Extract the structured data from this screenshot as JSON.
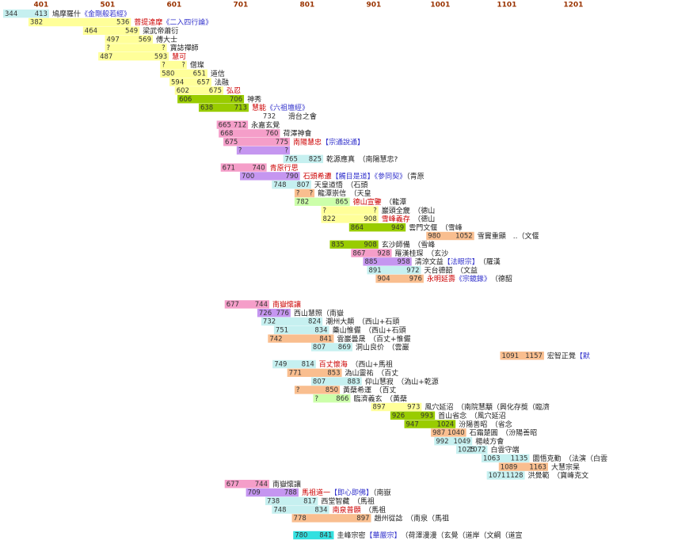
{
  "chart_data": {
    "type": "gantt",
    "xlim": [
      344,
      1250
    ],
    "xticks": [
      401,
      501,
      601,
      701,
      801,
      901,
      1001,
      1101,
      1201
    ],
    "grid": false,
    "name_color": "#cc0000",
    "work_color": "#3333cc",
    "rows": [
      {
        "start": 344,
        "end": 413,
        "color": "#c6f0f0",
        "name": "鳩摩羅什",
        "work": "《金剛般若經》"
      },
      {
        "start": 382,
        "end": 536,
        "color": "#ffff99",
        "name": "菩提達摩",
        "highlight": true,
        "work": "《二入四行論》"
      },
      {
        "start": 464,
        "end": 549,
        "color": "#ffff99",
        "name": "梁武帝蕭衍"
      },
      {
        "start": 497,
        "end": 569,
        "color": "#ffff99",
        "name": "傅大士"
      },
      {
        "start": {
          "value": 497,
          "label": "?"
        },
        "end": {
          "value": 590,
          "label": "?"
        },
        "color": "#ffff99",
        "name": "寶誌禪師"
      },
      {
        "start": 487,
        "end": 593,
        "color": "#ffff99",
        "name": "慧可",
        "highlight": true
      },
      {
        "start": {
          "value": 580,
          "label": "?"
        },
        "end": {
          "value": 620,
          "label": "?"
        },
        "color": "#ffff99",
        "name": "僧璨"
      },
      {
        "start": 580,
        "end": 651,
        "color": "#ffff99",
        "name": "道信"
      },
      {
        "start": 594,
        "end": 657,
        "color": "#ffff99",
        "name": "法融"
      },
      {
        "start": 602,
        "end": 675,
        "color": "#ffff99",
        "name": "弘忍",
        "highlight": true
      },
      {
        "start": 606,
        "end": 706,
        "color": "#99cc00",
        "name": "神秀"
      },
      {
        "start": 638,
        "end": 713,
        "color": "#99cc00",
        "name": "慧能",
        "highlight": true,
        "work": "《六祖壇經》"
      },
      {
        "start": 732,
        "name": "滑台之會"
      },
      {
        "start": 665,
        "end": 712,
        "color": "#f59ec9",
        "name": "永嘉玄覺"
      },
      {
        "start": 668,
        "end": 760,
        "color": "#f59ec9",
        "name": "荷澤神會"
      },
      {
        "start": 675,
        "end": 775,
        "color": "#f59ec9",
        "name": "南陽慧忠",
        "highlight": true,
        "work": "【宗通說通】"
      },
      {
        "start": {
          "value": 695,
          "label": "?"
        },
        "end": {
          "value": 775,
          "label": "?"
        },
        "color": "#c596f0"
      },
      {
        "start": 765,
        "end": 825,
        "color": "#c6f0f0",
        "name": "乾源應真",
        "note": "　（南陽慧忠?"
      },
      {
        "start": 671,
        "end": 740,
        "color": "#f59ec9",
        "name": "青原行思",
        "highlight": true
      },
      {
        "start": 700,
        "end": 790,
        "color": "#c596f0",
        "name": "石頭希遷",
        "highlight": true,
        "work": "【觸目是道】《參同契》",
        "note": "（青原"
      },
      {
        "start": 748,
        "end": 807,
        "color": "#c6f0f0",
        "name": "天皇道悟",
        "note": "　（石頭"
      },
      {
        "start": {
          "value": 782,
          "label": "?"
        },
        "end": {
          "value": 812,
          "label": "?"
        },
        "color": "#f9be8f",
        "name": "龍潭崇信",
        "note": "　（天皇"
      },
      {
        "start": 782,
        "end": 865,
        "color": "#ccffaa",
        "name": "德山宣鑒",
        "highlight": true,
        "note": "　（龍潭"
      },
      {
        "start": {
          "value": 822,
          "label": "?"
        },
        "end": {
          "value": 908,
          "label": "?"
        },
        "color": "#ffff99",
        "name": "巖頭全奯",
        "note": "　（德山"
      },
      {
        "start": 822,
        "end": 908,
        "color": "#ffff99",
        "name": "雪峰義存",
        "highlight": true,
        "note": "　（德山"
      },
      {
        "start": 864,
        "end": 949,
        "color": "#99cc00",
        "name": "雲門文偃",
        "note": "　（雪峰"
      },
      {
        "start": 980,
        "end": 1052,
        "color": "#f9be8f",
        "name": "雪竇重顯",
        "note": "　..（文偃"
      },
      {
        "start": 835,
        "end": 908,
        "color": "#99cc00",
        "name": "玄沙師備",
        "note": "　（雪峰"
      },
      {
        "start": 867,
        "end": 928,
        "color": "#f59ec9",
        "name": "羅漢桂琛",
        "note": "　（玄沙"
      },
      {
        "start": 885,
        "end": 958,
        "color": "#c596f0",
        "name": "清涼文益",
        "work": "【法眼宗】",
        "note": "　（羅漢"
      },
      {
        "start": 891,
        "end": 972,
        "color": "#c6f0f0",
        "name": "天台德韶",
        "note": "　（文益"
      },
      {
        "start": 904,
        "end": 976,
        "color": "#f9be8f",
        "name": "永明延壽",
        "highlight": true,
        "work": "《宗鏡錄》",
        "note": "　（德韶"
      },
      null,
      null,
      {
        "start": 677,
        "end": 744,
        "color": "#f59ec9",
        "name": "南嶽懷讓",
        "highlight": true
      },
      {
        "start": 726,
        "end": 776,
        "color": "#c596f0",
        "name": "西山慧照",
        "note": "（南嶽"
      },
      {
        "start": 732,
        "end": 824,
        "color": "#c6f0f0",
        "name": "潮州大顛",
        "note": "　（西山+石頭"
      },
      {
        "start": 751,
        "end": 834,
        "color": "#c6f0f0",
        "name": "藥山惟儼",
        "note": "　（西山+石頭"
      },
      {
        "start": 742,
        "end": 841,
        "color": "#f9be8f",
        "name": "雲巖曇晟",
        "note": "　（百丈+惟儼"
      },
      {
        "start": 807,
        "end": 869,
        "color": "#c6f0f0",
        "name": "洞山良价",
        "note": "　（雲巖"
      },
      {
        "start": 1091,
        "end": 1157,
        "color": "#f9be8f",
        "name": "宏智正覺",
        "work": "【默"
      },
      {
        "start": 749,
        "end": 814,
        "color": "#c6f0f0",
        "name": "百丈懷海",
        "highlight": true,
        "note": "　（西山+馬祖"
      },
      {
        "start": 771,
        "end": 853,
        "color": "#f9be8f",
        "name": "溈山靈祐",
        "note": "　（百丈"
      },
      {
        "start": 807,
        "end": 883,
        "color": "#c6f0f0",
        "name": "仰山慧寂",
        "note": "　（溈山+乾源"
      },
      {
        "start": {
          "value": 782,
          "label": "?"
        },
        "end": 850,
        "color": "#f9be8f",
        "name": "黃蘗希運",
        "note": "　（百丈"
      },
      {
        "start": {
          "value": 810,
          "label": "?"
        },
        "end": 866,
        "color": "#ccffaa",
        "name": "臨濟義玄",
        "note": "　（黃蘗"
      },
      {
        "start": 897,
        "end": 973,
        "color": "#ffff99",
        "name": "風穴延沼",
        "note": "　（南院慧顒（興化存獎（臨濟"
      },
      {
        "start": 926,
        "end": 993,
        "color": "#99cc00",
        "name": "首山省念",
        "note": "　（風穴延沼"
      },
      {
        "start": 947,
        "end": 1024,
        "color": "#99cc00",
        "name": "汾陽善昭",
        "note": "　（省念"
      },
      {
        "start": 987,
        "end": 1040,
        "color": "#f9be8f",
        "name": "石霜楚圓",
        "note": "　（汾陽善昭"
      },
      {
        "start": 992,
        "end": 1049,
        "color": "#c6f0f0",
        "name": "楊岐方會"
      },
      {
        "start": 1025,
        "end": 1072,
        "color": "#c6f0f0",
        "name": "白雲守端"
      },
      {
        "start": 1063,
        "end": 1135,
        "color": "#c6f0f0",
        "name": "圜悟克勤",
        "note": "　（法演（白雲"
      },
      {
        "start": 1089,
        "end": 1163,
        "color": "#f9be8f",
        "name": "大慧宗杲"
      },
      {
        "start": 1071,
        "end": 1128,
        "color": "#c6f0f0",
        "name": "洪覺範",
        "note": "　（寶峰克文"
      },
      {
        "start": 677,
        "end": 744,
        "color": "#f59ec9",
        "name": "南嶽懷讓"
      },
      {
        "start": 709,
        "end": 788,
        "color": "#c596f0",
        "name": "馬祖道一",
        "highlight": true,
        "work": "【即心即佛】",
        "note": "（南嶽"
      },
      {
        "start": 738,
        "end": 817,
        "color": "#c6f0f0",
        "name": "西堂智藏",
        "note": "　（馬祖"
      },
      {
        "start": 748,
        "end": 834,
        "color": "#c6f0f0",
        "name": "南泉普願",
        "highlight": true,
        "note": "　（馬祖"
      },
      {
        "start": 778,
        "end": 897,
        "color": "#f9be8f",
        "name": "趙州從諗",
        "note": "　（南泉（馬祖"
      },
      null,
      {
        "start": 780,
        "end": 841,
        "color": "#33e0e0",
        "name": "圭峰宗密",
        "work": "【華嚴宗】",
        "note": "　（荷澤漫漫（玄覺（道岸（文綱（道宣"
      }
    ]
  }
}
